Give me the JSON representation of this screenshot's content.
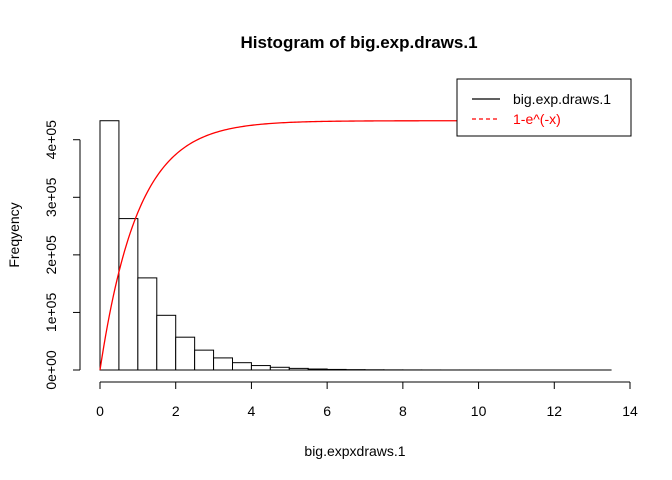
{
  "chart_data": {
    "type": "bar",
    "title": "Histogram of big.exp.draws.1",
    "xlabel": "big.expxdraws.1",
    "ylabel": "Freqyency",
    "xlim": [
      0,
      14
    ],
    "ylim": [
      0,
      440000
    ],
    "x_ticks": [
      0,
      2,
      4,
      6,
      8,
      10,
      12,
      14
    ],
    "x_tick_labels": [
      "0",
      "2",
      "4",
      "6",
      "8",
      "10",
      "12",
      "14"
    ],
    "y_ticks": [
      0,
      100000,
      200000,
      300000,
      400000
    ],
    "y_tick_labels": [
      "0e+00",
      "1e+05",
      "2e+05",
      "3e+05",
      "4e+05"
    ],
    "bin_width": 0.5,
    "bin_starts": [
      0,
      0.5,
      1,
      1.5,
      2,
      2.5,
      3,
      3.5,
      4,
      4.5,
      5,
      5.5,
      6,
      6.5,
      7,
      7.5,
      8,
      8.5,
      9,
      9.5,
      10,
      10.5,
      11,
      11.5,
      12,
      12.5,
      13
    ],
    "values": [
      433000,
      263000,
      160000,
      95000,
      57000,
      34500,
      21000,
      12700,
      7700,
      4700,
      2800,
      1700,
      1000,
      620,
      380,
      230,
      140,
      85,
      52,
      31,
      19,
      11,
      7,
      4,
      3,
      2,
      1
    ],
    "series": [
      {
        "name": "big.exp.draws.1",
        "type": "histogram",
        "color": "#000000",
        "line": "solid"
      },
      {
        "name": "1-e^(-x)",
        "type": "line",
        "color": "#ff0000",
        "line": "dashed",
        "scale": 433000
      }
    ],
    "legend_position": "top-right",
    "grid": false
  }
}
